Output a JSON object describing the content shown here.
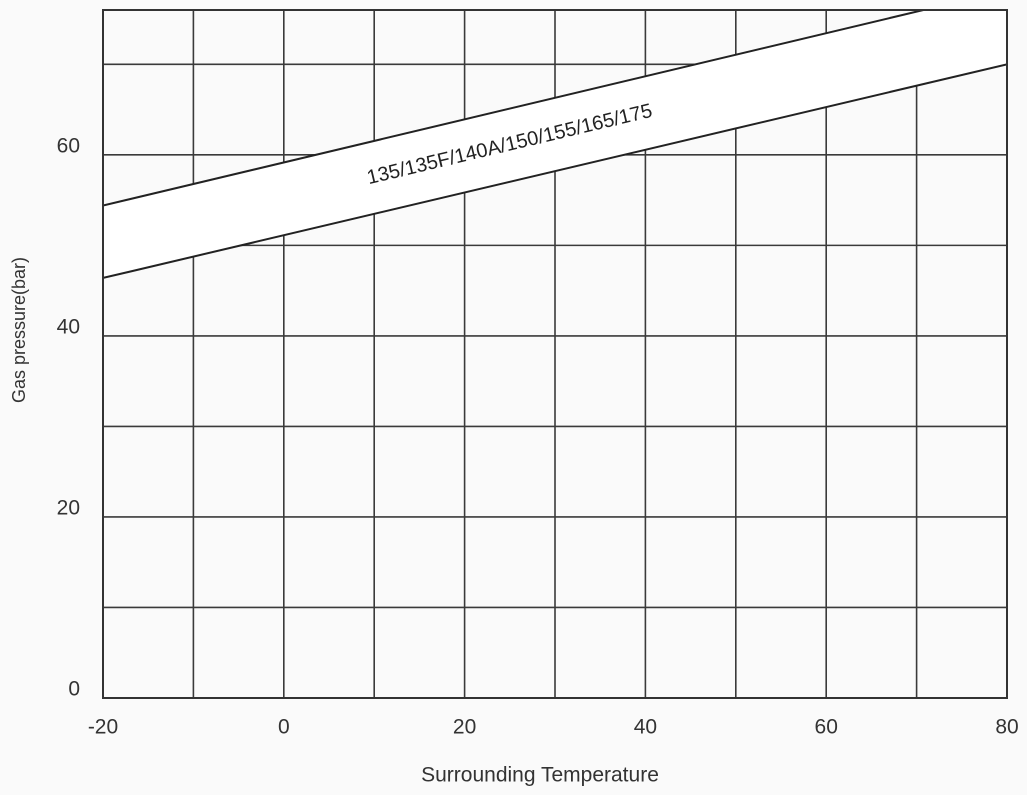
{
  "chart_data": {
    "type": "band",
    "xlabel": "Surrounding Temperature",
    "ylabel": "Gas pressure(bar)",
    "xlim": [
      -20,
      80
    ],
    "ylim": [
      0,
      76
    ],
    "xticks": [
      -20,
      0,
      20,
      40,
      60,
      80
    ],
    "yticks": [
      0,
      20,
      40,
      60
    ],
    "x_grid": [
      -10,
      10,
      30,
      50,
      70
    ],
    "y_grid": [
      10,
      30,
      50,
      70
    ],
    "grid": true,
    "color": "#222222",
    "bands": [
      {
        "label": "135/135F/140A/150/155/165/175",
        "x": [
          -20,
          80
        ],
        "upper": [
          54.4,
          78.2
        ],
        "lower": [
          46.4,
          70.0
        ]
      }
    ]
  }
}
